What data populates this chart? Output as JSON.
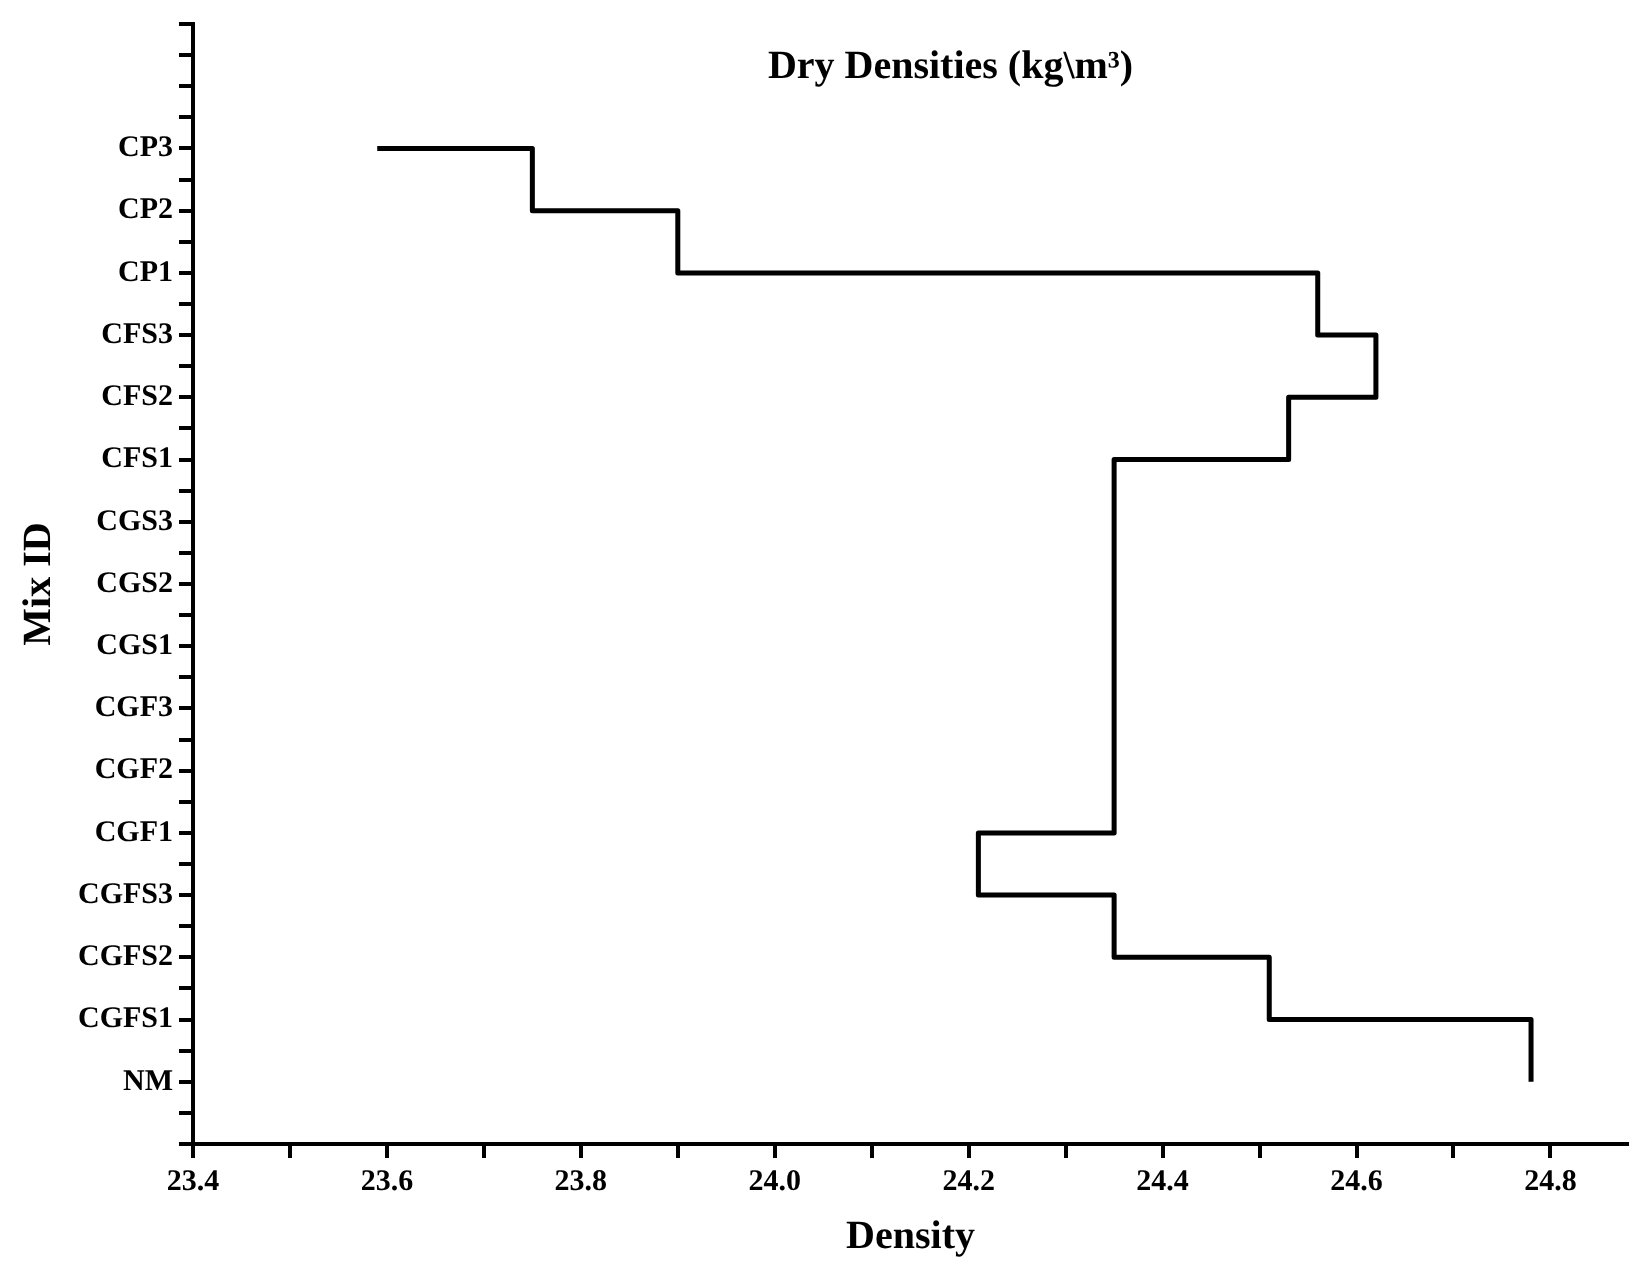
{
  "chart_data": {
    "type": "step",
    "orientation": "horizontal",
    "title": "Dry Densities (kg\\m³)",
    "xlabel": "Density",
    "ylabel": "Mix ID",
    "categories": [
      "CP3",
      "CP2",
      "CP1",
      "CFS3",
      "CFS2",
      "CFS1",
      "CGS3",
      "CGS2",
      "CGS1",
      "CGF3",
      "CGF2",
      "CGF1",
      "CGFS3",
      "CGFS2",
      "CGFS1",
      "NM"
    ],
    "values": [
      23.59,
      23.75,
      23.9,
      24.56,
      24.62,
      24.53,
      24.35,
      24.35,
      24.35,
      24.35,
      24.35,
      24.35,
      24.21,
      24.35,
      24.51,
      24.78
    ],
    "color": "#000000",
    "xlim": [
      23.4,
      24.88
    ],
    "xticks": [
      23.4,
      23.6,
      23.8,
      {
        "value": 24,
        "label": "24.0"
      },
      24.2,
      24.4,
      24.6,
      24.8
    ],
    "grid": false,
    "legend": false
  }
}
